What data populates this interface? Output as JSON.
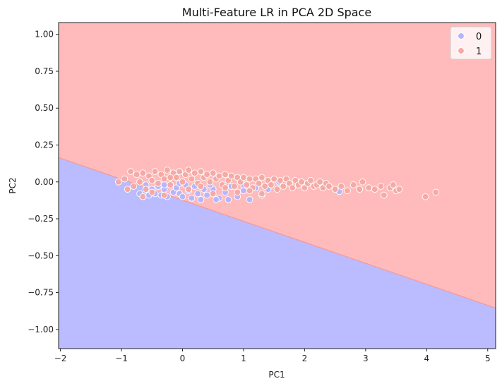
{
  "chart_data": {
    "type": "scatter",
    "title": "Multi-Feature LR in PCA 2D Space",
    "xlabel": "PC1",
    "ylabel": "PC2",
    "xlim": [
      -2.03,
      5.13
    ],
    "ylim": [
      -1.13,
      1.08
    ],
    "x_ticks": [
      -2,
      -1,
      0,
      1,
      2,
      3,
      4,
      5
    ],
    "x_tick_labels": [
      "−2",
      "−1",
      "0",
      "1",
      "2",
      "3",
      "4",
      "5"
    ],
    "y_ticks": [
      -1.0,
      -0.75,
      -0.5,
      -0.25,
      0.0,
      0.25,
      0.5,
      0.75,
      1.0
    ],
    "y_tick_labels": [
      "−1.00",
      "−0.75",
      "−0.50",
      "−0.25",
      "0.00",
      "0.25",
      "0.50",
      "0.75",
      "1.00"
    ],
    "decision_boundary": {
      "x": [
        -2.03,
        5.13
      ],
      "y": [
        0.165,
        -0.855
      ]
    },
    "regions": [
      {
        "class": "0",
        "side": "below",
        "color": "#bbbbff"
      },
      {
        "class": "1",
        "side": "above",
        "color": "#ffbbbb"
      }
    ],
    "legend": {
      "position": "top-right",
      "entries": [
        {
          "label": "0",
          "color": "#b4b4ff"
        },
        {
          "label": "1",
          "color": "#f6a9a3"
        }
      ]
    },
    "series": [
      {
        "name": "0",
        "color": "#b4b4ff",
        "points": [
          [
            -0.45,
            -0.08
          ],
          [
            -0.4,
            -0.03
          ],
          [
            -0.35,
            -0.09
          ],
          [
            -0.3,
            -0.05
          ],
          [
            -0.25,
            -0.1
          ],
          [
            -0.2,
            -0.02
          ],
          [
            -0.15,
            -0.07
          ],
          [
            -0.1,
            -0.04
          ],
          [
            -0.05,
            -0.08
          ],
          [
            0.0,
            -0.1
          ],
          [
            0.05,
            -0.02
          ],
          [
            0.1,
            -0.06
          ],
          [
            0.15,
            -0.11
          ],
          [
            0.2,
            -0.03
          ],
          [
            0.25,
            -0.08
          ],
          [
            0.3,
            -0.12
          ],
          [
            0.35,
            -0.05
          ],
          [
            -0.5,
            -0.05
          ],
          [
            -0.6,
            -0.02
          ],
          [
            -0.55,
            -0.09
          ],
          [
            0.4,
            -0.09
          ],
          [
            0.5,
            -0.05
          ],
          [
            0.6,
            -0.11
          ],
          [
            0.7,
            -0.07
          ],
          [
            0.8,
            -0.03
          ],
          [
            0.9,
            -0.1
          ],
          [
            1.0,
            -0.06
          ],
          [
            1.1,
            -0.12
          ],
          [
            1.2,
            -0.04
          ],
          [
            1.3,
            -0.09
          ],
          [
            1.4,
            -0.05
          ],
          [
            0.75,
            -0.12
          ],
          [
            0.45,
            -0.02
          ],
          [
            -0.7,
            -0.08
          ],
          [
            2.57,
            -0.065
          ],
          [
            1.58,
            0.0
          ],
          [
            1.0,
            -0.02
          ],
          [
            0.55,
            -0.12
          ],
          [
            -0.05,
            -0.01
          ],
          [
            -0.3,
            -0.02
          ]
        ]
      },
      {
        "name": "1",
        "color": "#f6a9a3",
        "points": [
          [
            -1.05,
            0.0
          ],
          [
            -0.95,
            0.02
          ],
          [
            -0.85,
            0.07
          ],
          [
            -0.8,
            -0.03
          ],
          [
            -0.75,
            0.05
          ],
          [
            -0.7,
            0.0
          ],
          [
            -0.65,
            0.06
          ],
          [
            -0.6,
            -0.05
          ],
          [
            -0.55,
            0.04
          ],
          [
            -0.5,
            0.01
          ],
          [
            -0.45,
            0.07
          ],
          [
            -0.4,
            -0.01
          ],
          [
            -0.35,
            0.05
          ],
          [
            -0.3,
            0.02
          ],
          [
            -0.25,
            0.08
          ],
          [
            -0.2,
            -0.02
          ],
          [
            -0.15,
            0.06
          ],
          [
            -0.1,
            0.03
          ],
          [
            -0.05,
            0.07
          ],
          [
            0.0,
            0.0
          ],
          [
            0.05,
            0.05
          ],
          [
            0.1,
            0.08
          ],
          [
            0.15,
            0.02
          ],
          [
            0.2,
            0.06
          ],
          [
            0.25,
            -0.01
          ],
          [
            0.3,
            0.07
          ],
          [
            0.35,
            0.03
          ],
          [
            0.4,
            0.05
          ],
          [
            0.45,
            0.0
          ],
          [
            0.5,
            0.06
          ],
          [
            0.55,
            0.02
          ],
          [
            0.6,
            0.04
          ],
          [
            0.65,
            -0.02
          ],
          [
            0.7,
            0.05
          ],
          [
            0.75,
            0.01
          ],
          [
            0.8,
            0.04
          ],
          [
            0.85,
            -0.03
          ],
          [
            0.9,
            0.03
          ],
          [
            0.95,
            0.0
          ],
          [
            1.0,
            0.03
          ],
          [
            1.05,
            -0.02
          ],
          [
            1.1,
            0.02
          ],
          [
            1.15,
            -0.04
          ],
          [
            1.2,
            0.02
          ],
          [
            1.25,
            -0.01
          ],
          [
            1.3,
            0.03
          ],
          [
            1.35,
            -0.03
          ],
          [
            1.4,
            0.01
          ],
          [
            1.45,
            -0.02
          ],
          [
            1.5,
            0.02
          ],
          [
            1.55,
            -0.05
          ],
          [
            1.6,
            0.01
          ],
          [
            1.65,
            -0.03
          ],
          [
            1.7,
            0.02
          ],
          [
            1.75,
            -0.01
          ],
          [
            1.8,
            -0.04
          ],
          [
            1.85,
            0.01
          ],
          [
            1.9,
            -0.02
          ],
          [
            1.95,
            0.0
          ],
          [
            2.0,
            -0.04
          ],
          [
            2.05,
            -0.01
          ],
          [
            2.1,
            0.01
          ],
          [
            2.15,
            -0.03
          ],
          [
            2.2,
            -0.02
          ],
          [
            2.25,
            0.0
          ],
          [
            2.3,
            -0.04
          ],
          [
            2.35,
            -0.01
          ],
          [
            2.4,
            -0.03
          ],
          [
            2.5,
            -0.05
          ],
          [
            2.6,
            -0.03
          ],
          [
            2.7,
            -0.06
          ],
          [
            2.8,
            -0.02
          ],
          [
            2.9,
            -0.05
          ],
          [
            2.95,
            0.0
          ],
          [
            3.05,
            -0.04
          ],
          [
            3.15,
            -0.05
          ],
          [
            3.25,
            -0.03
          ],
          [
            3.3,
            -0.09
          ],
          [
            3.4,
            -0.04
          ],
          [
            3.45,
            -0.02
          ],
          [
            3.5,
            -0.06
          ],
          [
            3.55,
            -0.05
          ],
          [
            3.98,
            -0.1
          ],
          [
            4.15,
            -0.07
          ],
          [
            -0.9,
            -0.05
          ],
          [
            -0.3,
            -0.09
          ],
          [
            0.1,
            -0.05
          ],
          [
            0.5,
            -0.08
          ],
          [
            0.9,
            -0.07
          ],
          [
            1.3,
            -0.08
          ],
          [
            -0.2,
            0.03
          ],
          [
            0.3,
            -0.03
          ],
          [
            0.7,
            -0.04
          ],
          [
            1.1,
            -0.06
          ],
          [
            -0.65,
            -0.1
          ],
          [
            -0.5,
            -0.07
          ]
        ]
      }
    ]
  }
}
